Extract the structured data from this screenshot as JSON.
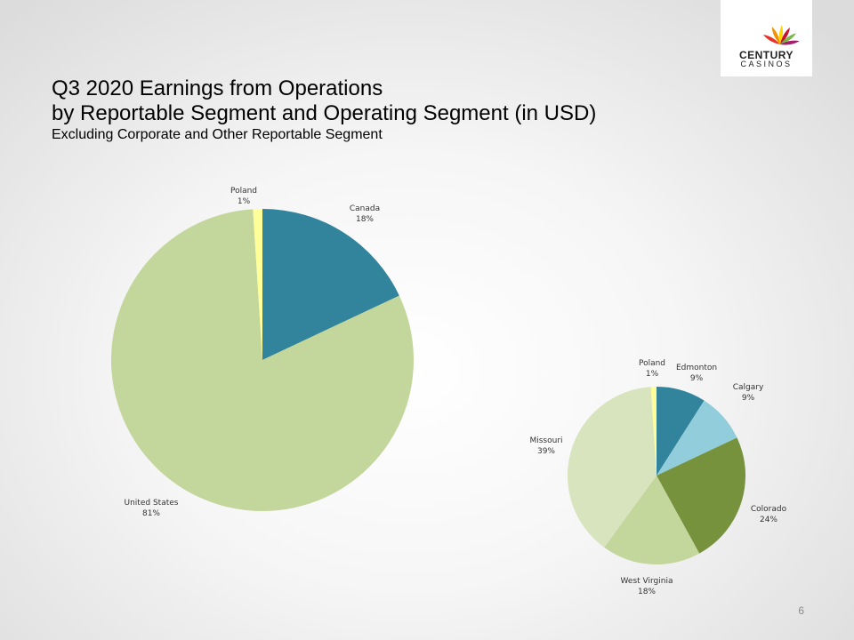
{
  "slide": {
    "title_line_1": "Q3 2020 Earnings from Operations",
    "title_line_2": "by Reportable Segment and Operating Segment (in USD)",
    "subtitle": "Excluding Corporate and Other Reportable Segment",
    "page_number": "6"
  },
  "logo": {
    "word_1": "CENTURY",
    "word_2": "CASINOS",
    "colors": [
      "#e5332a",
      "#f39200",
      "#ffd500",
      "#c8102e",
      "#7ab648",
      "#a61e6e"
    ]
  },
  "chart_data": [
    {
      "type": "pie",
      "title": "",
      "slices": [
        {
          "label": "Canada",
          "value": 18,
          "value_label": "18%",
          "color": "#31849b"
        },
        {
          "label": "United States",
          "value": 81,
          "value_label": "81%",
          "color": "#c3d69b"
        },
        {
          "label": "Poland",
          "value": 1,
          "value_label": "1%",
          "color": "#ffff99"
        }
      ]
    },
    {
      "type": "pie",
      "title": "",
      "slices": [
        {
          "label": "Edmonton",
          "value": 9,
          "value_label": "9%",
          "color": "#31849b"
        },
        {
          "label": "Calgary",
          "value": 9,
          "value_label": "9%",
          "color": "#92cddc"
        },
        {
          "label": "Colorado",
          "value": 24,
          "value_label": "24%",
          "color": "#76923c"
        },
        {
          "label": "West Virginia",
          "value": 18,
          "value_label": "18%",
          "color": "#c3d69b"
        },
        {
          "label": "Missouri",
          "value": 39,
          "value_label": "39%",
          "color": "#d7e4bd"
        },
        {
          "label": "Poland",
          "value": 1,
          "value_label": "1%",
          "color": "#ffff99"
        }
      ]
    }
  ]
}
